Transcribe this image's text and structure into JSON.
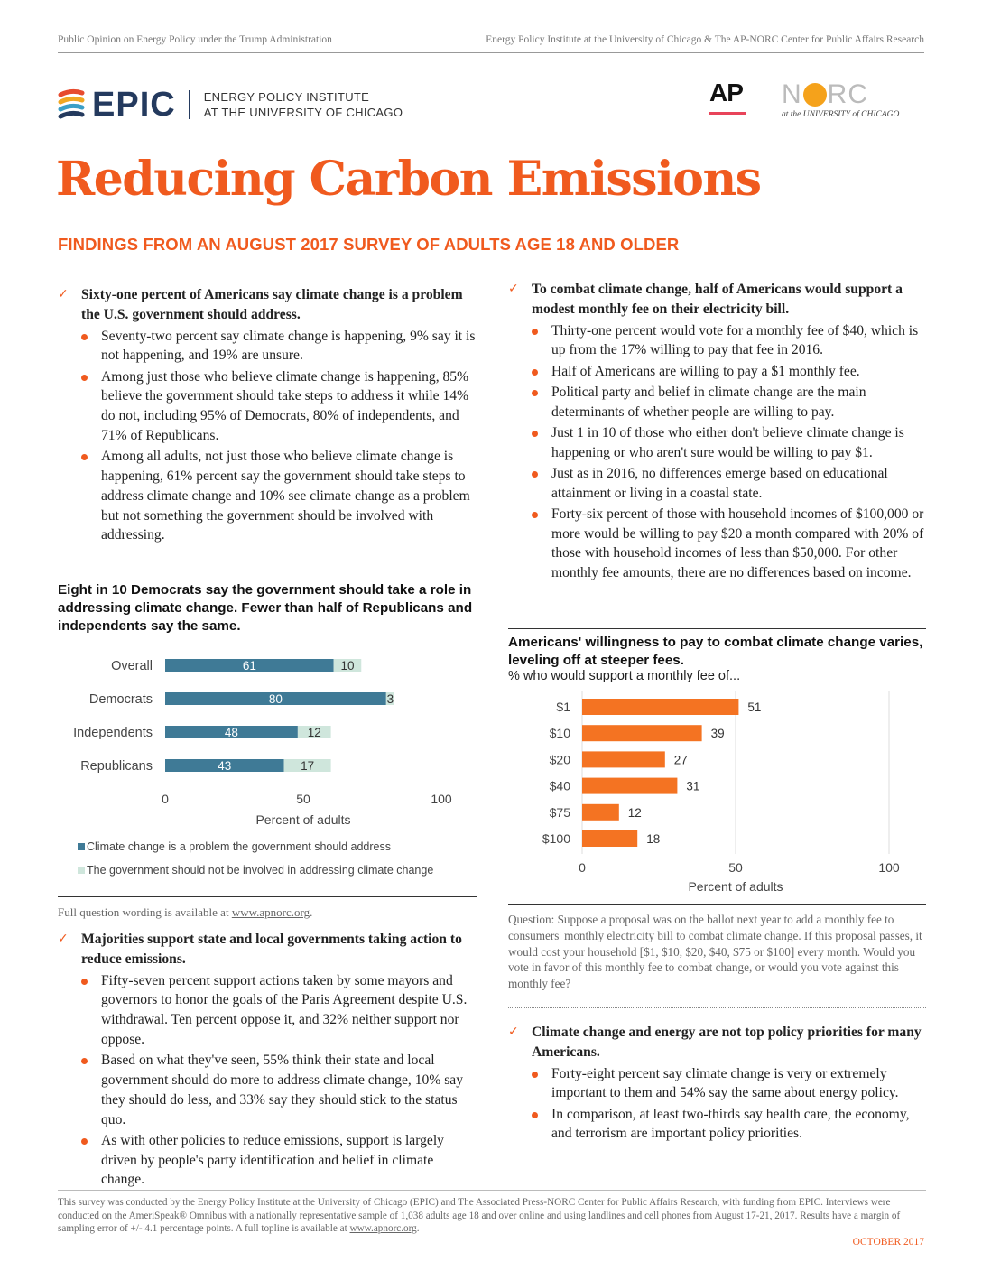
{
  "header": {
    "left": "Public Opinion on Energy Policy under the Trump Administration",
    "right": "Energy Policy Institute at the University of Chicago & The AP-NORC Center for Public Affairs Research"
  },
  "logos": {
    "epic_word": "EPIC",
    "epic_line1": "ENERGY POLICY INSTITUTE",
    "epic_line2": "AT THE UNIVERSITY OF CHICAGO",
    "ap": "AP",
    "norc_n": "N",
    "norc_rc": "RC",
    "norc_sub": "at the UNIVERSITY of CHICAGO"
  },
  "title": "Reducing Carbon Emissions",
  "subtitle": "FINDINGS FROM AN AUGUST 2017 SURVEY OF ADULTS AGE 18 AND OLDER",
  "sections": {
    "s1": {
      "heading": "Sixty-one percent of Americans say climate change is a problem the U.S. government should address.",
      "bullets": [
        "Seventy-two percent say climate change is happening, 9% say it is not happening, and 19% are unsure.",
        "Among just those who believe climate change is happening, 85% believe the government should take steps to address it while 14% do not, including 95% of Democrats, 80% of independents, and 71% of Republicans.",
        "Among all adults, not just those who believe climate change is happening, 61% percent say the government should take steps to address climate change and 10% see climate change as a problem but not something the government should be involved with addressing."
      ]
    },
    "s2": {
      "heading": "To combat climate change, half of Americans would support a modest monthly fee on their electricity bill.",
      "bullets": [
        "Thirty-one percent would vote for a monthly fee of $40, which is up from the 17% willing to pay that fee in 2016.",
        "Half of Americans are willing to pay a $1 monthly fee.",
        "Political party and belief in climate change are the main determinants of whether people are willing to pay.",
        "Just 1 in 10 of those who either don't believe climate change is happening or who aren't sure would be willing to pay $1.",
        "Just as in 2016, no differences emerge based on educational attainment or living in a coastal state.",
        "Forty-six percent of those with household incomes of $100,000 or more would be willing to pay $20 a month compared with 20% of those with household incomes of less than $50,000. For other monthly fee amounts, there are no differences based on income."
      ]
    },
    "s3": {
      "heading": "Majorities support state and local governments taking action to reduce emissions.",
      "bullets": [
        "Fifty-seven percent support actions taken by some mayors and governors to honor the goals of the Paris Agreement despite U.S. withdrawal. Ten percent oppose it, and 32% neither support nor oppose.",
        "Based on what they've seen, 55% think their state and local government should do more to address climate change, 10% say they should do less, and 33% say they should stick to the status quo.",
        "As with other policies to reduce emissions, support is largely driven by people's party identification and belief in climate change."
      ]
    },
    "s4": {
      "heading": "Climate change and energy are not top policy priorities for many Americans.",
      "bullets": [
        "Forty-eight percent say climate change is very or extremely important to them and 54% say the same about energy policy.",
        "In comparison, at least two-thirds say health care, the economy, and terrorism are important policy priorities."
      ]
    }
  },
  "chart_data": [
    {
      "type": "bar",
      "orientation": "horizontal",
      "stacked": true,
      "title": "Eight in 10 Democrats say the government should take a role in addressing climate change. Fewer than half of Republicans and independents say the same.",
      "categories": [
        "Overall",
        "Democrats",
        "Independents",
        "Republicans"
      ],
      "series": [
        {
          "name": "Climate change is a problem the government should address",
          "values": [
            61,
            80,
            48,
            43
          ],
          "color": "#3f7a96"
        },
        {
          "name": "The government should not be involved in addressing climate change",
          "values": [
            10,
            3,
            12,
            17
          ],
          "color": "#cfe6dc"
        }
      ],
      "xlim": [
        0,
        100
      ],
      "xticks": [
        "0",
        "50",
        "100"
      ],
      "xlabel": "Percent of adults",
      "legend": "bottom"
    },
    {
      "type": "bar",
      "orientation": "horizontal",
      "title": "Americans' willingness to pay to combat climate change varies, leveling off at steeper fees.",
      "subtitle": "% who would support a monthly fee of...",
      "categories": [
        "$1",
        "$10",
        "$20",
        "$40",
        "$75",
        "$100"
      ],
      "values": [
        51,
        39,
        27,
        31,
        12,
        18
      ],
      "color": "#f47322",
      "xlim": [
        0,
        100
      ],
      "xticks": [
        "0",
        "50",
        "100"
      ],
      "xlabel": "Percent of adults",
      "grid": true
    }
  ],
  "notes": {
    "left_prefix": "Full question wording is available at ",
    "left_link": "www.apnorc.org",
    "left_suffix": ".",
    "question": "Question: Suppose a proposal was on the ballot next year to add a monthly fee to consumers' monthly electricity bill to combat climate change. If this proposal passes, it would cost your household [$1, $10, $20, $40, $75 or $100] every month. Would you vote in favor of this monthly fee to combat change, or would you vote against this monthly fee?"
  },
  "footer": {
    "text": "This survey was conducted by the Energy Policy Institute at the University of Chicago (EPIC) and The Associated Press-NORC Center for Public Affairs Research, with funding from EPIC. Interviews were conducted on the AmeriSpeak® Omnibus with a nationally representative sample of 1,038 adults age 18 and over online and using landlines and cell phones from August 17-21, 2017. Results have a margin of sampling error of +/- 4.1 percentage points. A full topline is available at ",
    "link": "www.apnorc.org",
    "suffix": ".",
    "date": "OCTOBER 2017"
  }
}
